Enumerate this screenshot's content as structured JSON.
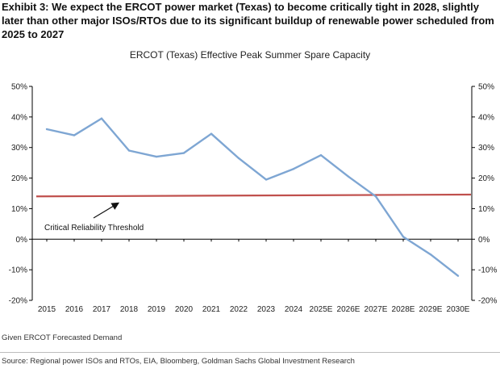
{
  "header": {
    "exhibit_label": "Exhibit 3:",
    "headline": "We expect the ERCOT power market (Texas) to become critically tight in 2028, slightly later than other major ISOs/RTOs due to its significant buildup of renewable power scheduled from 2025 to 2027"
  },
  "footnote": "Given ERCOT Forecasted Demand",
  "source": "Source: Regional power ISOs and RTOs, EIA, Bloomberg, Goldman Sachs Global Investment Research",
  "colors": {
    "line": "#7ea6d3",
    "threshold": "#c0504d",
    "axis": "#000000"
  },
  "chart_data": {
    "type": "line",
    "title": "ERCOT (Texas) Effective Peak Summer Spare Capacity",
    "xlabel": "",
    "ylabel": "",
    "categories": [
      "2015",
      "2016",
      "2017",
      "2018",
      "2019",
      "2020",
      "2021",
      "2022",
      "2023",
      "2024",
      "2025E",
      "2026E",
      "2027E",
      "2028E",
      "2029E",
      "2030E"
    ],
    "y_tick_labels": [
      "50%",
      "40%",
      "30%",
      "20%",
      "10%",
      "0%",
      "-10%",
      "-20%"
    ],
    "ylim": [
      -20,
      50
    ],
    "secondary_axis": true,
    "series": [
      {
        "values": [
          36,
          34,
          39.5,
          29,
          27,
          28.2,
          34.5,
          26.5,
          19.5,
          23,
          27.5,
          20.5,
          14,
          0.8,
          -5,
          -12
        ]
      }
    ],
    "threshold_line": {
      "start": 14,
      "end": 14.6
    },
    "annotation": "Critical Reliability Threshold",
    "grid": false,
    "legend": "none"
  }
}
